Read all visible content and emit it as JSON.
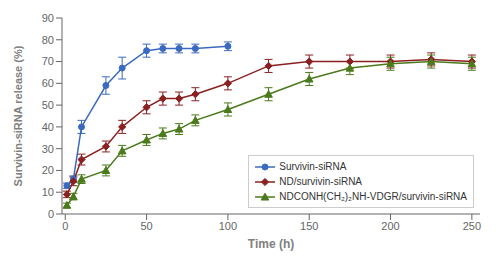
{
  "chart_data": {
    "type": "line",
    "xlabel": "Time (h)",
    "ylabel": "Survivin-siRNA release (%)",
    "xlim": [
      -2,
      255
    ],
    "ylim": [
      0,
      90
    ],
    "xticks": [
      0,
      50,
      100,
      150,
      200,
      250
    ],
    "yticks": [
      0,
      10,
      20,
      30,
      40,
      50,
      60,
      70,
      80,
      90
    ],
    "grid": false,
    "legend": "lower right",
    "series": [
      {
        "name": "Survivin-siRNA",
        "color": "#3a6abf",
        "marker": "circle",
        "x": [
          1,
          5,
          10,
          25,
          35,
          50,
          60,
          70,
          80,
          100
        ],
        "values": [
          13,
          16,
          40,
          59,
          67,
          75,
          76,
          76,
          76,
          77
        ],
        "yerr": [
          1.2,
          1.5,
          3,
          4,
          5,
          3,
          2,
          2,
          2,
          2
        ]
      },
      {
        "name": "ND/survivin-siRNA",
        "color": "#8b2020",
        "marker": "diamond",
        "x": [
          1,
          5,
          10,
          25,
          35,
          50,
          60,
          70,
          80,
          100,
          125,
          150,
          175,
          200,
          225,
          250
        ],
        "values": [
          9,
          15,
          25,
          31,
          40,
          49,
          53,
          53,
          55,
          60,
          68,
          70,
          70,
          70,
          71,
          70
        ],
        "yerr": [
          1.5,
          2,
          2.5,
          2.5,
          3,
          3,
          3,
          3,
          3,
          3,
          3,
          3,
          3,
          3,
          3,
          3
        ]
      },
      {
        "name": "NDCONH(CH₂)₂NH-VDGR/survivin-siRNA",
        "color": "#4a7a1a",
        "marker": "triangle",
        "x": [
          1,
          5,
          10,
          25,
          35,
          50,
          60,
          70,
          80,
          100,
          125,
          150,
          175,
          200,
          225,
          250
        ],
        "values": [
          4,
          8,
          16,
          20,
          29,
          34,
          37,
          39,
          43,
          48,
          55,
          62,
          67,
          69,
          70,
          69
        ],
        "yerr": [
          1,
          1.5,
          2,
          2.5,
          2.5,
          2.5,
          2.5,
          2.5,
          2.5,
          3,
          3,
          3,
          3,
          3,
          3,
          3
        ]
      }
    ]
  }
}
